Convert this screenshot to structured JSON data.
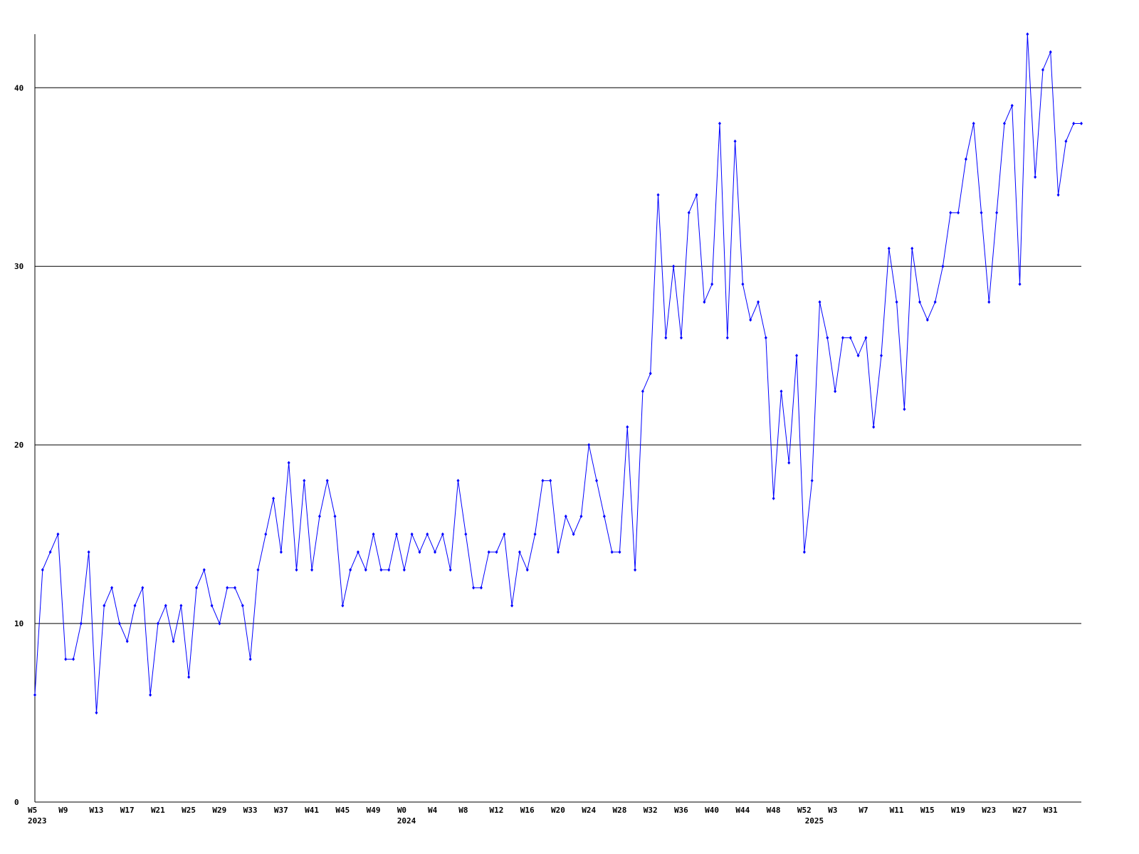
{
  "chart_data": {
    "type": "line",
    "categories": [
      "W5",
      null,
      null,
      null,
      "W9",
      null,
      null,
      null,
      "W13",
      null,
      null,
      null,
      "W17",
      null,
      null,
      null,
      "W21",
      null,
      null,
      null,
      "W25",
      null,
      null,
      null,
      "W29",
      null,
      null,
      null,
      "W33",
      null,
      null,
      null,
      "W37",
      null,
      null,
      null,
      "W41",
      null,
      null,
      null,
      "W45",
      null,
      null,
      null,
      "W49",
      null,
      null,
      null,
      "W0",
      null,
      null,
      null,
      "W4",
      null,
      null,
      null,
      "W8",
      null,
      null,
      null,
      "W12",
      null,
      null,
      null,
      "W16",
      null,
      null,
      null,
      "W20",
      null,
      null,
      null,
      "W24",
      null,
      null,
      null,
      "W28",
      null,
      null,
      null,
      "W32",
      null,
      null,
      null,
      "W36",
      null,
      null,
      null,
      "W40",
      null,
      null,
      null,
      "W44",
      null,
      null,
      null,
      "W48",
      null,
      null,
      null,
      "W52",
      null,
      null,
      null,
      "W3",
      null,
      null,
      null,
      "W7",
      null,
      null,
      null,
      "W11",
      null,
      null,
      null,
      "W15",
      null,
      null,
      null,
      "W19",
      null,
      null,
      null,
      "W23",
      null,
      null,
      null,
      "W27",
      null,
      null,
      null,
      "W31",
      null,
      null,
      null,
      null
    ],
    "category_years": [
      "2023",
      null,
      null,
      null,
      null,
      null,
      null,
      null,
      null,
      null,
      null,
      null,
      null,
      null,
      null,
      null,
      null,
      null,
      null,
      null,
      null,
      null,
      null,
      null,
      null,
      null,
      null,
      null,
      null,
      null,
      null,
      null,
      null,
      null,
      null,
      null,
      null,
      null,
      null,
      null,
      null,
      null,
      null,
      null,
      null,
      null,
      null,
      null,
      "2024",
      null,
      null,
      null,
      null,
      null,
      null,
      null,
      null,
      null,
      null,
      null,
      null,
      null,
      null,
      null,
      null,
      null,
      null,
      null,
      null,
      null,
      null,
      null,
      null,
      null,
      null,
      null,
      null,
      null,
      null,
      null,
      null,
      null,
      null,
      null,
      null,
      null,
      null,
      null,
      null,
      null,
      null,
      null,
      null,
      null,
      null,
      null,
      null,
      null,
      null,
      null,
      null,
      "2025",
      null,
      null,
      null,
      null,
      null,
      null,
      null,
      null,
      null,
      null,
      null,
      null,
      null,
      null,
      null,
      null,
      null,
      null,
      null,
      null,
      null,
      null,
      null,
      null,
      null,
      null,
      null,
      null,
      null,
      null,
      null,
      null,
      null,
      null,
      null
    ],
    "series": [
      {
        "color": "#0000ff",
        "values": [
          6,
          13,
          14,
          15,
          8,
          8,
          10,
          14,
          5,
          11,
          12,
          10,
          9,
          11,
          12,
          6,
          10,
          11,
          9,
          11,
          7,
          12,
          13,
          11,
          10,
          12,
          12,
          11,
          8,
          13,
          15,
          17,
          14,
          19,
          13,
          18,
          13,
          16,
          18,
          16,
          11,
          13,
          14,
          13,
          15,
          13,
          13,
          15,
          13,
          15,
          14,
          15,
          14,
          15,
          13,
          18,
          15,
          12,
          12,
          14,
          14,
          15,
          11,
          14,
          13,
          15,
          18,
          18,
          14,
          16,
          15,
          16,
          20,
          18,
          16,
          14,
          14,
          21,
          13,
          23,
          24,
          34,
          26,
          30,
          26,
          33,
          34,
          28,
          29,
          38,
          26,
          37,
          29,
          27,
          28,
          26,
          17,
          23,
          19,
          25,
          14,
          18,
          28,
          26,
          23,
          26,
          26,
          25,
          26,
          21,
          25,
          31,
          28,
          22,
          31,
          28,
          27,
          28,
          30,
          33,
          33,
          36,
          38,
          33,
          28,
          33,
          38,
          39,
          29,
          43,
          35,
          41,
          42,
          34,
          37,
          38,
          38
        ]
      }
    ],
    "ylim": [
      0,
      43
    ],
    "yticks": [
      0,
      10,
      20,
      30,
      40
    ],
    "grid": true
  }
}
